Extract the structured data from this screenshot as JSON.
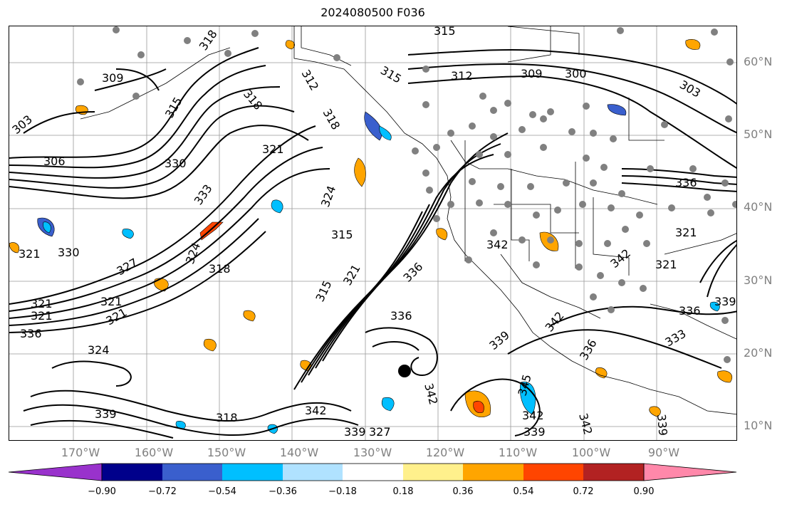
{
  "title": "2024080500 F036",
  "lat_labels": [
    "60°N",
    "50°N",
    "40°N",
    "30°N",
    "20°N",
    "10°N"
  ],
  "lon_labels": [
    "170°W",
    "160°W",
    "150°W",
    "140°W",
    "130°W",
    "120°W",
    "110°W",
    "100°W",
    "90°W"
  ],
  "contour_labels": [
    "315",
    "318",
    "312",
    "309",
    "306",
    "303",
    "300",
    "330",
    "321",
    "333",
    "324",
    "327",
    "336",
    "339",
    "342",
    "345"
  ],
  "colorbar": {
    "tick_labels": [
      "−0.90",
      "−0.72",
      "−0.54",
      "−0.36",
      "−0.18",
      "0.18",
      "0.36",
      "0.54",
      "0.72",
      "0.90"
    ],
    "colors": [
      "#9932cc",
      "#00008b",
      "#3a5fcd",
      "#00bfff",
      "#b0e2ff",
      "#ffffff",
      "#fff08c",
      "#ffa500",
      "#ff4500",
      "#b22222",
      "#ff88aa"
    ]
  },
  "markers": {
    "station_color": "#808080",
    "storm_center_color": "#000000"
  }
}
